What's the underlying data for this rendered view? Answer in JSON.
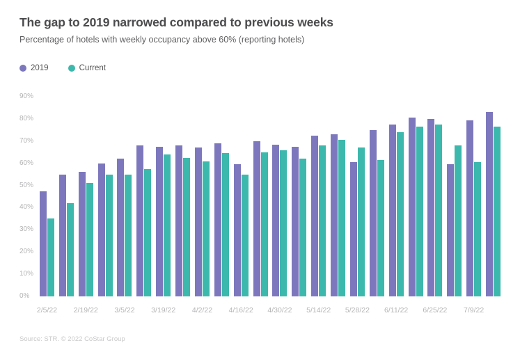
{
  "header": {
    "title": "The gap to 2019 narrowed compared to previous weeks",
    "subtitle": "Percentage of hotels with weekly occupancy above 60% (reporting hotels)"
  },
  "legend": [
    {
      "label": "2019",
      "color": "#7d78bd"
    },
    {
      "label": "Current",
      "color": "#3cb8ac"
    }
  ],
  "footer": {
    "source_text": "Source: STR. © 2022 CoStar Group"
  },
  "chart_data": {
    "type": "bar",
    "title": "The gap to 2019 narrowed compared to previous weeks",
    "subtitle": "Percentage of hotels with weekly occupancy above 60% (reporting hotels)",
    "xlabel": "",
    "ylabel": "",
    "ylim": [
      0,
      90
    ],
    "y_tick_step": 10,
    "y_tick_labels": [
      "0%",
      "10%",
      "20%",
      "30%",
      "40%",
      "50%",
      "60%",
      "70%",
      "80%",
      "90%"
    ],
    "grid": false,
    "legend_position": "top-left",
    "categories": [
      "2/5/22",
      "2/12/22",
      "2/19/22",
      "2/26/22",
      "3/5/22",
      "3/12/22",
      "3/19/22",
      "3/26/22",
      "4/2/22",
      "4/9/22",
      "4/16/22",
      "4/23/22",
      "4/30/22",
      "5/7/22",
      "5/14/22",
      "5/21/22",
      "5/28/22",
      "6/4/22",
      "6/11/22",
      "6/18/22",
      "6/25/22",
      "7/2/22",
      "7/9/22",
      "7/16/22"
    ],
    "x_tick_labels": [
      "2/5/22",
      "2/19/22",
      "3/5/22",
      "3/19/22",
      "4/2/22",
      "4/16/22",
      "4/30/22",
      "5/14/22",
      "5/28/22",
      "6/11/22",
      "6/25/22",
      "7/9/22"
    ],
    "x_tick_every": 2,
    "series": [
      {
        "name": "2019",
        "color": "#7d78bd",
        "values": [
          47.5,
          55,
          56,
          60,
          62,
          68,
          67.5,
          68,
          67,
          69,
          59.5,
          70,
          68.5,
          67.5,
          72.5,
          73,
          60.5,
          75,
          77.5,
          80.5,
          80,
          59.5,
          79.5,
          83
        ]
      },
      {
        "name": "Current",
        "color": "#3cb8ac",
        "values": [
          35,
          42,
          51,
          55,
          55,
          57.5,
          64,
          62.5,
          61,
          64.5,
          55,
          65,
          66,
          62,
          68,
          70.5,
          67,
          61.5,
          74,
          76.5,
          77.5,
          68,
          60.5,
          76.5
        ]
      }
    ]
  }
}
